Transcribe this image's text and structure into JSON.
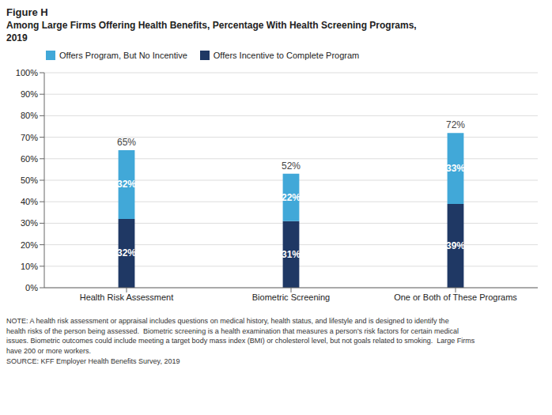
{
  "chart_data": {
    "type": "bar",
    "title": "Figure H",
    "subtitle": "Among Large Firms Offering Health Benefits, Percentage With Health Screening Programs,\n2019",
    "categories": [
      "Health Risk Assessment",
      "Biometric Screening",
      "One or Both of These Programs"
    ],
    "series": [
      {
        "name": "Offers Incentive to Complete Program",
        "color": "#1f3864",
        "values": [
          32,
          31,
          39
        ],
        "value_labels": [
          "32%",
          "31%",
          "39%"
        ]
      },
      {
        "name": "Offers Program, But No Incentive",
        "color": "#41a8d8",
        "values": [
          32,
          22,
          33
        ],
        "value_labels": [
          "32%",
          "22%",
          "33%"
        ]
      }
    ],
    "totals": [
      65,
      52,
      72
    ],
    "total_labels": [
      "65%",
      "52%",
      "72%"
    ],
    "stacked": true,
    "data_labels": true,
    "legend": "upper left",
    "grid": true,
    "ylim": [
      0,
      100
    ],
    "yticks": [
      {
        "value": 0,
        "label": "0%"
      },
      {
        "value": 10,
        "label": "10%"
      },
      {
        "value": 20,
        "label": "20%"
      },
      {
        "value": 30,
        "label": "30%"
      },
      {
        "value": 40,
        "label": "40%"
      },
      {
        "value": 50,
        "label": "50%"
      },
      {
        "value": 60,
        "label": "60%"
      },
      {
        "value": 70,
        "label": "70%"
      },
      {
        "value": 80,
        "label": "80%"
      },
      {
        "value": 90,
        "label": "90%"
      },
      {
        "value": 100,
        "label": "100%"
      }
    ],
    "annotations": [
      "NOTE: A health risk assessment or appraisal includes questions on medical history, health status, and lifestyle and is designed to identify the",
      "health risks of the person being assessed.  Biometric screening is a health examination that measures a person’s risk factors for certain medical",
      "issues. Biometric outcomes could include meeting a target body mass index (BMI) or cholesterol level, but not goals related to smoking.  Large Firms",
      "have 200 or more workers.",
      "SOURCE: KFF Employer Health Benefits Survey, 2019"
    ]
  }
}
